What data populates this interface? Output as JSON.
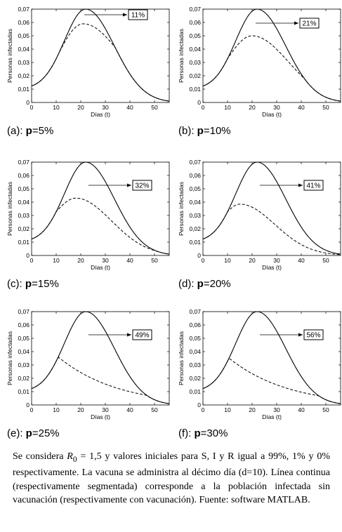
{
  "chart_data": [
    {
      "id": "a",
      "type": "line",
      "xlabel": "Días (t)",
      "ylabel": "Personas infectadas",
      "xlim": [
        0,
        56
      ],
      "ylim": [
        0,
        0.07
      ],
      "xticks": [
        "0",
        "10",
        "20",
        "30",
        "40",
        "50"
      ],
      "yticks": [
        "0",
        "0,01",
        "0,02",
        "0,03",
        "0,04",
        "0,05",
        "0,06",
        "0,07"
      ],
      "annotation": "11%",
      "caption_prefix": "(a): ",
      "caption_p": "p",
      "caption_value": "=5%",
      "vac_peak": 0.059,
      "vac_peak_t": 21
    },
    {
      "id": "b",
      "type": "line",
      "xlabel": "Días (t)",
      "ylabel": "Personas infectadas",
      "xlim": [
        0,
        56
      ],
      "ylim": [
        0,
        0.07
      ],
      "xticks": [
        "0",
        "10",
        "20",
        "30",
        "40",
        "50"
      ],
      "yticks": [
        "0",
        "0,01",
        "0,02",
        "0,03",
        "0,04",
        "0,05",
        "0,06",
        "0,07"
      ],
      "annotation": "21%",
      "caption_prefix": "(b): ",
      "caption_p": "p",
      "caption_value": "=10%",
      "vac_peak": 0.05,
      "vac_peak_t": 20
    },
    {
      "id": "c",
      "type": "line",
      "xlabel": "Días (t)",
      "ylabel": "Personas infectadas",
      "xlim": [
        0,
        56
      ],
      "ylim": [
        0,
        0.07
      ],
      "xticks": [
        "0",
        "10",
        "20",
        "30",
        "40",
        "50"
      ],
      "yticks": [
        "0",
        "0,01",
        "0,02",
        "0,03",
        "0,04",
        "0,05",
        "0,06",
        "0,07"
      ],
      "annotation": "32%",
      "caption_prefix": "(c): ",
      "caption_p": "p",
      "caption_value": "=15%",
      "vac_peak": 0.043,
      "vac_peak_t": 18
    },
    {
      "id": "d",
      "type": "line",
      "xlabel": "Días (t)",
      "ylabel": "Personas infectadas",
      "xlim": [
        0,
        56
      ],
      "ylim": [
        0,
        0.07
      ],
      "xticks": [
        "0",
        "10",
        "20",
        "30",
        "40",
        "50"
      ],
      "yticks": [
        "0",
        "0,01",
        "0,02",
        "0,03",
        "0,04",
        "0,05",
        "0,06",
        "0,07"
      ],
      "annotation": "41%",
      "caption_prefix": "(d): ",
      "caption_p": "p",
      "caption_value": "=20%",
      "vac_peak": 0.0385,
      "vac_peak_t": 15
    },
    {
      "id": "e",
      "type": "line",
      "xlabel": "Días (t)",
      "ylabel": "Personas infectadas",
      "xlim": [
        0,
        56
      ],
      "ylim": [
        0,
        0.07
      ],
      "xticks": [
        "0",
        "10",
        "20",
        "30",
        "40",
        "50"
      ],
      "yticks": [
        "0",
        "0,01",
        "0,02",
        "0,03",
        "0,04",
        "0,05",
        "0,06",
        "0,07"
      ],
      "annotation": "49%",
      "caption_prefix": "(e): ",
      "caption_p": "p",
      "caption_value": "=25%",
      "vac_peak": 0.0365,
      "vac_peak_t": 10.5
    },
    {
      "id": "f",
      "type": "line",
      "xlabel": "Días (t)",
      "ylabel": "Personas infectadas",
      "xlim": [
        0,
        56
      ],
      "ylim": [
        0,
        0.07
      ],
      "xticks": [
        "0",
        "10",
        "20",
        "30",
        "40",
        "50"
      ],
      "yticks": [
        "0",
        "0,01",
        "0,02",
        "0,03",
        "0,04",
        "0,05",
        "0,06",
        "0,07"
      ],
      "annotation": "56%",
      "caption_prefix": "(f): ",
      "caption_p": "p",
      "caption_value": "=30%",
      "vac_peak": 0.036,
      "vac_peak_t": 10
    }
  ],
  "baseline": {
    "peak": 0.07,
    "peak_t": 22,
    "start": 0.01,
    "end": 0.004
  },
  "footnote": {
    "part1": "Se considera ",
    "r0_symbol": "R",
    "r0_sub": "0",
    "part2": " = 1,5 y valores iniciales para S, I y R igual a 99%, 1% y 0% respectivamente. La vacuna se administra al décimo día (d=10). Línea continua (respectivamente segmentada) corresponde a la población infectada sin vacunación (respectivamente con vacunación). Fuente: software MATLAB."
  }
}
